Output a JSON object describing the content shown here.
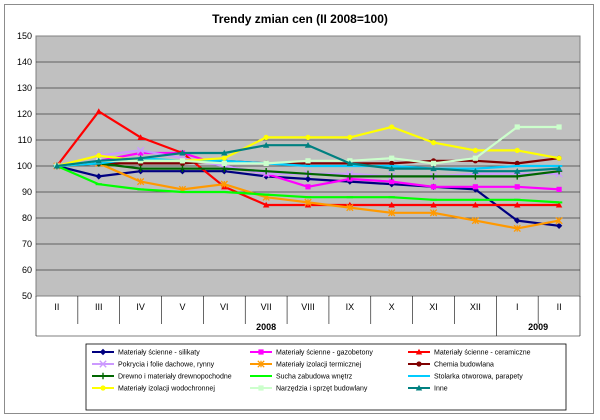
{
  "chart_data": {
    "type": "line",
    "title": "Trendy zmian cen (II 2008=100)",
    "xlabel": "",
    "ylabel": "",
    "ylim": [
      50,
      150
    ],
    "yticks": [
      "50",
      "60",
      "70",
      "80",
      "90",
      "100",
      "110",
      "120",
      "130",
      "140",
      "150"
    ],
    "categories": [
      "II",
      "III",
      "IV",
      "V",
      "VI",
      "VII",
      "VIII",
      "IX",
      "X",
      "XI",
      "XII",
      "I",
      "II"
    ],
    "year_labels": [
      "2008",
      "2009"
    ],
    "grid": true,
    "legend_position": "bottom",
    "series": [
      {
        "name": "Materiały ścienne - silikaty",
        "color": "#000080",
        "marker": "diamond",
        "values": [
          100,
          96,
          98,
          98,
          98,
          96,
          95,
          94,
          93,
          92,
          91,
          79,
          77
        ]
      },
      {
        "name": "Materiały ścienne - gazobetony",
        "color": "#ff00ff",
        "marker": "square",
        "values": [
          100,
          102,
          105,
          105,
          100,
          97,
          92,
          95,
          94,
          92,
          92,
          92,
          91
        ]
      },
      {
        "name": "Materiały ścienne - ceramiczne",
        "color": "#ff0000",
        "marker": "triangle",
        "values": [
          100,
          121,
          111,
          105,
          92,
          85,
          85,
          85,
          85,
          85,
          85,
          85,
          85
        ]
      },
      {
        "name": "Pokrycia i folie dachowe, rynny",
        "color": "#cc99ff",
        "marker": "x",
        "values": [
          100,
          104,
          106,
          103,
          100,
          97,
          97,
          97,
          96,
          96,
          97,
          97,
          97
        ]
      },
      {
        "name": "Materiały izolacji termicznej",
        "color": "#ff9900",
        "marker": "star",
        "values": [
          100,
          101,
          94,
          91,
          93,
          88,
          86,
          84,
          82,
          82,
          79,
          76,
          79
        ]
      },
      {
        "name": "Chemia budowlana",
        "color": "#800000",
        "marker": "circle",
        "values": [
          100,
          101,
          101,
          101,
          102,
          101,
          101,
          101,
          101,
          102,
          102,
          101,
          103
        ]
      },
      {
        "name": "Drewno i materiały drewnopochodne",
        "color": "#006600",
        "marker": "plus",
        "values": [
          100,
          101,
          99,
          99,
          99,
          98,
          97,
          96,
          96,
          96,
          96,
          96,
          98
        ]
      },
      {
        "name": "Sucha zabudowa wnętrz",
        "color": "#00ff00",
        "marker": "dash",
        "values": [
          100,
          93,
          91,
          90,
          90,
          89,
          88,
          88,
          88,
          87,
          87,
          87,
          86
        ]
      },
      {
        "name": "Stolarka otworowa, parapety",
        "color": "#00ccff",
        "marker": "dash",
        "values": [
          100,
          101,
          103,
          102,
          102,
          101,
          100,
          100,
          100,
          99,
          99,
          100,
          100
        ]
      },
      {
        "name": "Materiały izolacji wodochronnej",
        "color": "#ffff00",
        "marker": "circle",
        "values": [
          100,
          104,
          102,
          102,
          103,
          111,
          111,
          111,
          115,
          109,
          106,
          106,
          103
        ]
      },
      {
        "name": "Narzędzia i sprzęt budowlany",
        "color": "#ccffcc",
        "marker": "square",
        "values": [
          100,
          102,
          102,
          102,
          101,
          101,
          102,
          102,
          103,
          101,
          103,
          115,
          115
        ]
      },
      {
        "name": "Inne",
        "color": "#008080",
        "marker": "triangle",
        "values": [
          100,
          102,
          103,
          105,
          105,
          108,
          108,
          101,
          99,
          99,
          98,
          98,
          99
        ]
      }
    ]
  }
}
